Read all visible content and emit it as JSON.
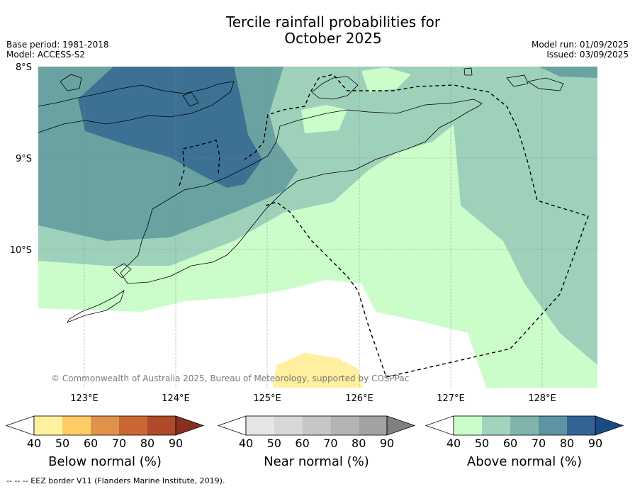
{
  "title_line1": "Tercile rainfall probabilities for",
  "title_line2": "October 2025",
  "base_period": "Base period: 1981-2018",
  "model": "Model: ACCESS-S2",
  "model_run": "Model run: 01/09/2025",
  "issued": "Issued: 03/09/2025",
  "lat_labels": [
    "8°S",
    "9°S",
    "10°S"
  ],
  "lon_labels": [
    "123°E",
    "124°E",
    "125°E",
    "126°E",
    "127°E",
    "128°E"
  ],
  "copyright": "© Commonwealth of Australia 2025, Bureau of Meteorology, supported by COSPPac",
  "colorbars": [
    {
      "label": "Below normal (%)",
      "ticks": [
        "40",
        "50",
        "60",
        "70",
        "80",
        "90"
      ],
      "colors": [
        "#ffffff",
        "#fff0a0",
        "#fecb64",
        "#e0924a",
        "#cc6632",
        "#b04a2a",
        "#8a3020"
      ]
    },
    {
      "label": "Near normal (%)",
      "ticks": [
        "40",
        "50",
        "60",
        "70",
        "80",
        "90"
      ],
      "colors": [
        "#ffffff",
        "#e6e6e6",
        "#d8d8d8",
        "#c6c6c6",
        "#b4b4b4",
        "#a2a2a2",
        "#808080"
      ]
    },
    {
      "label": "Above normal (%)",
      "ticks": [
        "40",
        "50",
        "60",
        "70",
        "80",
        "90"
      ],
      "colors": [
        "#ffffff",
        "#cbfdcb",
        "#a0d4bc",
        "#80b4ac",
        "#5c94a4",
        "#346494",
        "#1a4c84"
      ]
    }
  ],
  "legend_footer": "--  --  -- EEZ border V11 (Flanders Marine Institute, 2019)."
}
